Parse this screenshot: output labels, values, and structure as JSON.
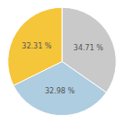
{
  "chart_data": {
    "type": "pie",
    "values": [
      34.71,
      32.98,
      32.31
    ],
    "value_labels": [
      "34.71 %",
      "32.98 %",
      "32.31 %"
    ],
    "colors": [
      "#c9c9c9",
      "#aecde0",
      "#f5c53a"
    ],
    "data_labels": true
  }
}
